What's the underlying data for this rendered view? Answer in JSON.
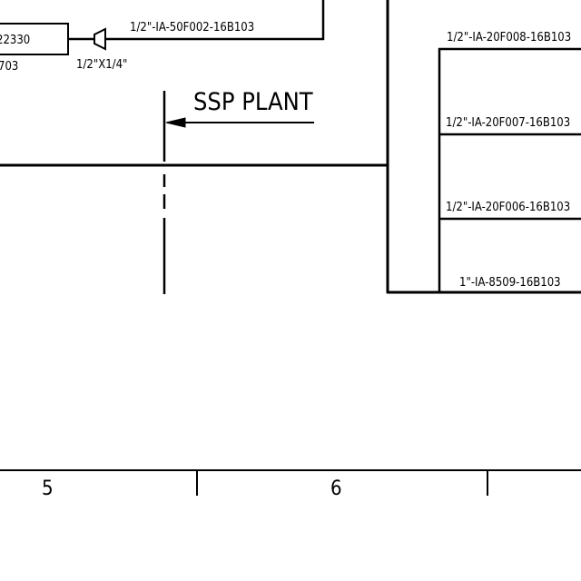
{
  "drawing": {
    "tag_box": {
      "text": "22330",
      "sub_text": "703"
    },
    "reducer_label": "1/2\"X1/4\"",
    "top_line_label": "1/2\"-IA-50F002-16B103",
    "plant_label": "SSP PLANT",
    "branch_lines": [
      {
        "label": "1/2\"-IA-20F008-16B103"
      },
      {
        "label": "1/2\"-IA-20F007-16B103"
      },
      {
        "label": "1/2\"-IA-20F006-16B103"
      },
      {
        "label": "1\"-IA-8509-16B103"
      }
    ],
    "grid_columns": [
      "5",
      "6"
    ]
  }
}
